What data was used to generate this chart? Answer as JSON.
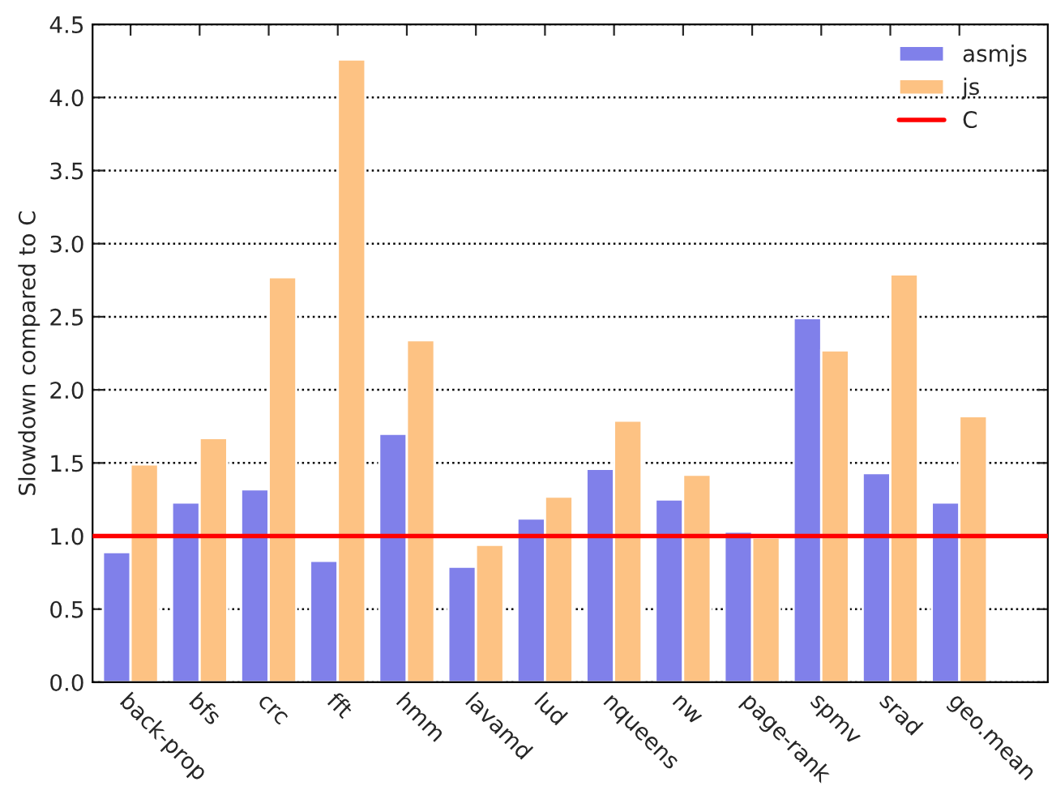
{
  "chart_data": {
    "type": "bar",
    "ylabel": "Slowdown compared to C",
    "categories": [
      "back-prop",
      "bfs",
      "crc",
      "fft",
      "hmm",
      "lavamd",
      "lud",
      "nqueens",
      "nw",
      "page-rank",
      "spmv",
      "srad",
      "geo.mean"
    ],
    "series": [
      {
        "name": "asmjs",
        "color": "#8080ea",
        "values": [
          0.89,
          1.23,
          1.32,
          0.83,
          1.7,
          0.79,
          1.12,
          1.46,
          1.25,
          1.03,
          2.49,
          1.43,
          1.23
        ]
      },
      {
        "name": "js",
        "color": "#fdc283",
        "values": [
          1.49,
          1.67,
          2.77,
          4.26,
          2.34,
          0.94,
          1.27,
          1.79,
          1.42,
          0.99,
          2.27,
          2.79,
          1.82
        ]
      }
    ],
    "ylim": [
      0,
      4.5
    ],
    "yticks": [
      {
        "value": 0,
        "label": "0.0"
      },
      0.5,
      {
        "value": 1,
        "label": "1.0"
      },
      1.5,
      {
        "value": 2,
        "label": "2.0"
      },
      2.5,
      {
        "value": 3,
        "label": "3.0"
      },
      3.5,
      {
        "value": 4,
        "label": "4.0"
      },
      4.5
    ],
    "ref_lines": [
      {
        "axis": "y",
        "value": 1,
        "label": "C",
        "color": "#ff0000",
        "line_style": "solid"
      }
    ],
    "grid": "y",
    "legend": "top right"
  }
}
